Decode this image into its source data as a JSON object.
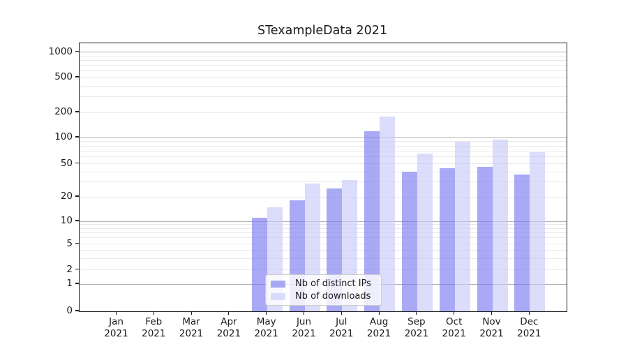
{
  "title": "STexampleData 2021",
  "chart_data": {
    "type": "bar",
    "title": "STexampleData 2021",
    "categories": [
      "Jan 2021",
      "Feb 2021",
      "Mar 2021",
      "Apr 2021",
      "May 2021",
      "Jun 2021",
      "Jul 2021",
      "Aug 2021",
      "Sep 2021",
      "Oct 2021",
      "Nov 2021",
      "Dec 2021"
    ],
    "series": [
      {
        "name": "Nb of distinct IPs",
        "color": "#7777f0",
        "opacity": 0.63,
        "values": [
          0,
          0,
          0,
          0,
          11,
          18,
          25,
          118,
          40,
          44,
          46,
          37
        ]
      },
      {
        "name": "Nb of downloads",
        "color": "#c8c8f8",
        "opacity": 0.63,
        "values": [
          0,
          0,
          0,
          0,
          15,
          29,
          32,
          177,
          65,
          90,
          95,
          68
        ]
      }
    ],
    "xlabel": "",
    "ylabel": "",
    "ylim": [
      0,
      1250
    ],
    "y_scale": "log above 1 (linear segment 0 to 1)",
    "y_ticks": [
      0,
      1,
      2,
      5,
      10,
      20,
      50,
      100,
      200,
      500,
      1000
    ],
    "major_gridlines": [
      1,
      10,
      100,
      1000
    ],
    "grid": true,
    "legend_position": "lower center inside plot"
  },
  "legend": {
    "items": [
      {
        "label": "Nb of distinct IPs"
      },
      {
        "label": "Nb of downloads"
      }
    ]
  },
  "colors": {
    "bar_dark_effective": "#a9a9f6",
    "bar_light_effective": "#dcdcfa",
    "axis": "#1a1a1a",
    "grid_minor": "#e9e9e9",
    "grid_major": "#b1b1b1",
    "legend_border": "#cccccc"
  }
}
